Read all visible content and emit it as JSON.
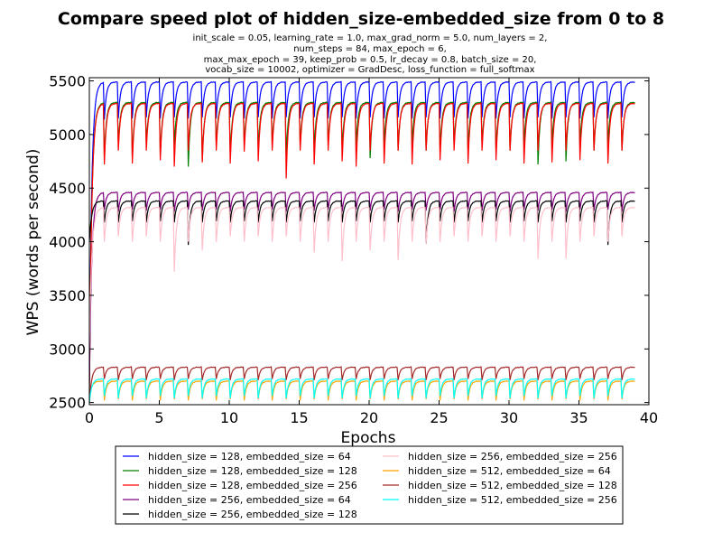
{
  "chart_data": {
    "type": "line",
    "title": "Compare speed plot of hidden_size-embedded_size from 0 to 8",
    "subtitle_lines": [
      "init_scale = 0.05, learning_rate = 1.0, max_grad_norm = 5.0, num_layers = 2,",
      "num_steps = 84, max_epoch = 6,",
      "max_max_epoch = 39, keep_prob = 0.5, lr_decay = 0.8, batch_size = 20,",
      "vocab_size = 10002, optimizer = GradDesc, loss_function = full_softmax"
    ],
    "xlabel": "Epochs",
    "ylabel": "WPS (words per second)",
    "xlim": [
      0,
      40
    ],
    "ylim": [
      2480,
      5530
    ],
    "xticks": [
      0,
      5,
      10,
      15,
      20,
      25,
      30,
      35,
      40
    ],
    "yticks": [
      2500,
      3000,
      3500,
      4000,
      4500,
      5000,
      5500
    ],
    "grid": false,
    "legend_position": "bottom",
    "epochs": 39,
    "series": [
      {
        "name": "hidden_size = 128, embedded_size = 64",
        "color": "#0000ff",
        "start": 2700,
        "plateau": 5490,
        "dips": [
          5140,
          5140,
          5150,
          5150,
          5160,
          5150,
          5160,
          5150,
          5160,
          5150,
          5160,
          5150,
          5160,
          5150,
          5160,
          5150,
          5160,
          5150,
          5160,
          5150,
          5160,
          5150,
          5160,
          5150,
          5160,
          5150,
          5160,
          5150,
          5160,
          5150,
          5160,
          5150,
          5160,
          5150,
          5160,
          5150,
          5160,
          5150,
          5160
        ]
      },
      {
        "name": "hidden_size = 128, embedded_size = 128",
        "color": "#008000",
        "start": 2600,
        "plateau": 5300,
        "dips": [
          5000,
          4780,
          4900,
          4780,
          4900,
          4800,
          4900,
          4700,
          4750,
          4900,
          4800,
          4900,
          4850,
          4900,
          4800,
          4900,
          4850,
          4900,
          4850,
          4900,
          4780,
          4900,
          4850,
          4900,
          4850,
          4850,
          4900,
          4850,
          4900,
          4850,
          4850,
          4900,
          4720,
          4900,
          4750,
          4900,
          4850,
          4900,
          4850
        ]
      },
      {
        "name": "hidden_size = 128, embedded_size = 256",
        "color": "#ff0000",
        "start": 2550,
        "plateau": 5290,
        "dips": [
          4850,
          4720,
          4850,
          4730,
          4850,
          4760,
          4700,
          4850,
          4740,
          4850,
          4730,
          4840,
          4750,
          4850,
          4590,
          4850,
          4720,
          4850,
          4750,
          4700,
          4850,
          4730,
          4850,
          4720,
          4850,
          4760,
          4850,
          4730,
          4850,
          4760,
          4850,
          4730,
          4850,
          4740,
          4850,
          4760,
          4850,
          4730,
          4850
        ]
      },
      {
        "name": "hidden_size = 256, embedded_size = 64",
        "color": "#800080",
        "start": 2650,
        "plateau": 4460,
        "dips": [
          4290,
          4300,
          4280,
          4300,
          4290,
          4300,
          4280,
          4300,
          4290,
          4300,
          4280,
          4300,
          4290,
          4300,
          4280,
          4300,
          4290,
          4300,
          4280,
          4300,
          4290,
          4300,
          4280,
          4300,
          4290,
          4300,
          4280,
          4300,
          4290,
          4300,
          4280,
          4300,
          4290,
          4300,
          4280,
          4300,
          4290,
          4300,
          4280
        ]
      },
      {
        "name": "hidden_size = 256, embedded_size = 128",
        "color": "#000000",
        "start": 4000,
        "plateau": 4380,
        "dips": [
          4060,
          4180,
          4180,
          4190,
          4180,
          4190,
          4180,
          3970,
          4180,
          4190,
          4180,
          4190,
          4180,
          4190,
          4180,
          4190,
          4180,
          4190,
          4180,
          4190,
          4180,
          4190,
          4180,
          4190,
          3980,
          4190,
          4180,
          4190,
          4180,
          4190,
          4180,
          4190,
          4180,
          4190,
          4180,
          4190,
          4180,
          3970,
          4180
        ]
      },
      {
        "name": "hidden_size = 256, embedded_size = 256",
        "color": "#ffc0cb",
        "start": 3000,
        "plateau": 4320,
        "dips": [
          4040,
          4000,
          4050,
          4000,
          4050,
          4000,
          3720,
          4000,
          3920,
          4000,
          4050,
          4000,
          4050,
          4000,
          4050,
          4000,
          3900,
          4000,
          3820,
          4000,
          3920,
          4000,
          3830,
          4000,
          3980,
          4000,
          4050,
          4000,
          4050,
          4000,
          4050,
          4000,
          3840,
          4000,
          3840,
          4000,
          4050,
          4000,
          4050
        ]
      },
      {
        "name": "hidden_size = 512, embedded_size = 64",
        "color": "#ffa500",
        "start": 2550,
        "plateau": 2700,
        "dips": [
          2540,
          2520,
          2530,
          2520,
          2530,
          2520,
          2530,
          2520,
          2530,
          2520,
          2530,
          2520,
          2530,
          2520,
          2530,
          2520,
          2530,
          2520,
          2530,
          2520,
          2530,
          2520,
          2530,
          2520,
          2530,
          2520,
          2530,
          2520,
          2530,
          2520,
          2530,
          2520,
          2530,
          2520,
          2530,
          2520,
          2530,
          2520,
          2530
        ]
      },
      {
        "name": "hidden_size = 512, embedded_size = 128",
        "color": "#a52a2a",
        "start": 2500,
        "plateau": 2830,
        "dips": [
          2710,
          2720,
          2710,
          2720,
          2710,
          2720,
          2710,
          2720,
          2710,
          2720,
          2710,
          2720,
          2710,
          2720,
          2710,
          2720,
          2710,
          2720,
          2710,
          2720,
          2710,
          2720,
          2710,
          2720,
          2710,
          2720,
          2710,
          2720,
          2710,
          2720,
          2710,
          2720,
          2710,
          2720,
          2710,
          2720,
          2710,
          2720,
          2710
        ]
      },
      {
        "name": "hidden_size = 512, embedded_size = 256",
        "color": "#00ffff",
        "start": 2500,
        "plateau": 2720,
        "dips": [
          2540,
          2560,
          2540,
          2560,
          2540,
          2560,
          2540,
          2560,
          2540,
          2560,
          2540,
          2560,
          2540,
          2560,
          2540,
          2560,
          2540,
          2560,
          2540,
          2560,
          2540,
          2560,
          2540,
          2560,
          2540,
          2560,
          2540,
          2560,
          2540,
          2560,
          2540,
          2560,
          2540,
          2560,
          2540,
          2560,
          2540,
          2560,
          2540
        ]
      }
    ]
  }
}
